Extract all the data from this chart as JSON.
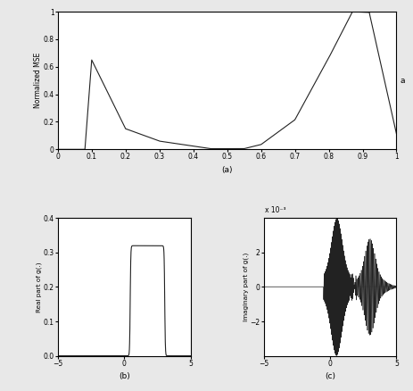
{
  "fig_width": 4.63,
  "fig_height": 4.38,
  "dpi": 100,
  "top_plot": {
    "xlabel": "(a)",
    "ylabel": "Normalized MSE",
    "xlim": [
      0,
      1
    ],
    "ylim": [
      0,
      1
    ],
    "xticks": [
      0,
      0.1,
      0.2,
      0.3,
      0.4,
      0.5,
      0.6,
      0.7,
      0.8,
      0.9,
      1.0
    ],
    "yticks": [
      0,
      0.2,
      0.4,
      0.6,
      0.8,
      1.0
    ],
    "corner_label": "a",
    "line_color": "#222222"
  },
  "bottom_left": {
    "xlabel": "(b)",
    "ylabel": "Real part of g(.)",
    "xlim": [
      -5,
      5
    ],
    "ylim": [
      0,
      0.4
    ],
    "yticks": [
      0,
      0.1,
      0.2,
      0.3,
      0.4
    ],
    "xticks": [
      -5,
      0,
      5
    ],
    "line_color": "#222222"
  },
  "bottom_right": {
    "xlabel": "(c)",
    "ylabel": "Imaginary part of g(.)",
    "xlim": [
      -5,
      5
    ],
    "ylim": [
      -4,
      4
    ],
    "yticks": [
      -2,
      0,
      2
    ],
    "xticks": [
      -5,
      0,
      5
    ],
    "scale_label": "x 10⁻³",
    "line_color": "#222222"
  },
  "background_color": "#e8e8e8",
  "axes_color": "#ffffff"
}
